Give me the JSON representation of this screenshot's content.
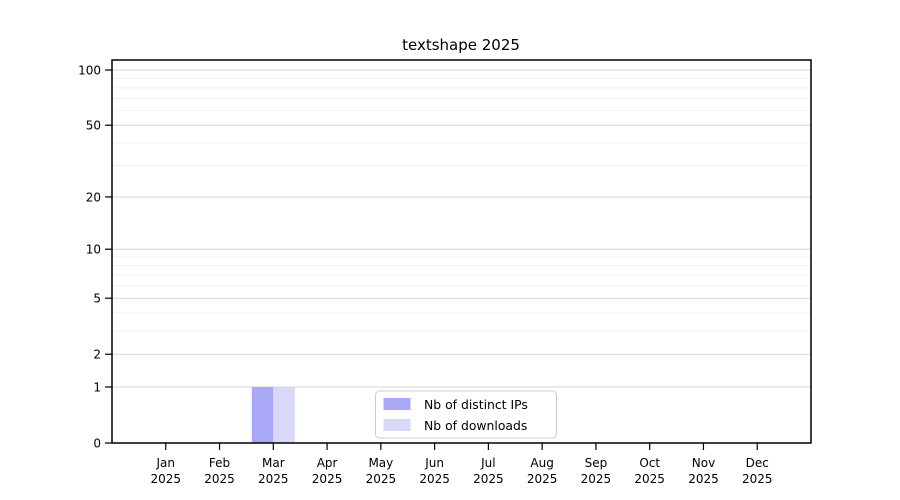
{
  "chart_data": {
    "type": "bar",
    "title": "textshape 2025",
    "x": {
      "months": [
        "Jan",
        "Feb",
        "Mar",
        "Apr",
        "May",
        "Jun",
        "Jul",
        "Aug",
        "Sep",
        "Oct",
        "Nov",
        "Dec"
      ],
      "year": "2025"
    },
    "series": [
      {
        "name": "Nb of distinct IPs",
        "color": "#a8a8f7",
        "values": [
          0,
          0,
          1,
          0,
          0,
          0,
          0,
          0,
          0,
          0,
          0,
          0
        ]
      },
      {
        "name": "Nb of downloads",
        "color": "#d8d8f9",
        "values": [
          0,
          0,
          1,
          0,
          0,
          0,
          0,
          0,
          0,
          0,
          0,
          0
        ]
      }
    ],
    "y_axis": {
      "scale": "log1p",
      "major_ticks": [
        0,
        1,
        2,
        5,
        10,
        20,
        50,
        100
      ],
      "minor_ticks": [
        3,
        4,
        6,
        7,
        8,
        9,
        30,
        40,
        60,
        70,
        80,
        90
      ],
      "ylim": [
        0,
        114
      ]
    },
    "legend": {
      "entries": [
        "Nb of distinct IPs",
        "Nb of downloads"
      ],
      "position": "lower center"
    },
    "grid": true,
    "colors": {
      "grid_major": "#d6d6d6",
      "grid_minor": "#f1f1f1",
      "axis": "#000000",
      "legend_border": "#cccccc",
      "background": "#ffffff"
    }
  }
}
